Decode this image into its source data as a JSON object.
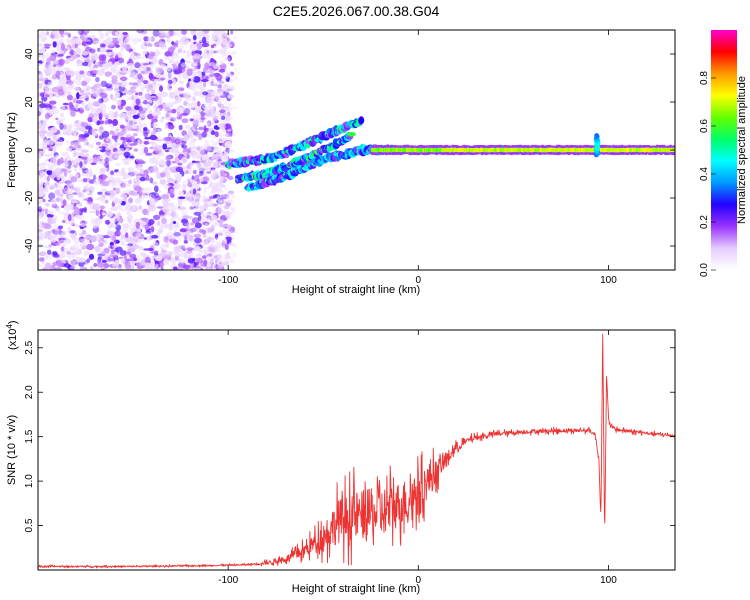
{
  "chart_data": [
    {
      "type": "heatmap",
      "title": "C2E5.2026.067.00.38.G04",
      "xlabel": "Height of straight line (km)",
      "ylabel": "Frequency (Hz)",
      "xlim": [
        -200,
        135
      ],
      "ylim": [
        -50,
        50
      ],
      "x_ticks": [
        -100,
        0,
        100
      ],
      "x_tick_labels": [
        "-100",
        "0",
        "100"
      ],
      "y_ticks": [
        -40,
        -20,
        0,
        20,
        40
      ],
      "y_tick_labels": [
        "-40",
        "-20",
        "0",
        "20",
        "40"
      ],
      "noise_region_x": [
        -200,
        -98
      ],
      "sparse_cloud_x": [
        -112,
        -96
      ],
      "carrier": {
        "x_start": -25,
        "x_end": 135,
        "frequency": 0,
        "amplitude": 0.7
      },
      "carrier_spike": {
        "x": 94,
        "frequency_range": [
          -2,
          6
        ],
        "amplitude": 0.5
      },
      "drift_branches": [
        {
          "name": "upper",
          "points": [
            [
              -100,
              -6
            ],
            [
              -75,
              -3
            ],
            [
              -55,
              4
            ],
            [
              -40,
              9
            ],
            [
              -30,
              12
            ]
          ],
          "amplitude": 0.4
        },
        {
          "name": "middle",
          "points": [
            [
              -95,
              -12
            ],
            [
              -80,
              -10
            ],
            [
              -60,
              -4
            ],
            [
              -45,
              2
            ],
            [
              -35,
              6
            ]
          ],
          "amplitude": 0.45
        },
        {
          "name": "lower",
          "points": [
            [
              -90,
              -16
            ],
            [
              -70,
              -11
            ],
            [
              -50,
              -4
            ],
            [
              -30,
              0
            ],
            [
              -10,
              0
            ]
          ],
          "amplitude": 0.35
        }
      ],
      "colorbar": {
        "label": "Normalized spectral amplitude",
        "range": [
          0,
          1
        ],
        "ticks": [
          0.0,
          0.2,
          0.4,
          0.6,
          0.8
        ],
        "tick_labels": [
          "0.0",
          "0.2",
          "0.4",
          "0.6",
          "0.8"
        ],
        "colors": [
          "#ffffff",
          "#e6ccff",
          "#9933ff",
          "#2200ff",
          "#0099ff",
          "#00ffff",
          "#00ff66",
          "#66ff00",
          "#ffff00",
          "#ff9900",
          "#ff0000",
          "#ff00cc"
        ]
      }
    },
    {
      "type": "line",
      "xlabel": "Height of straight line (km)",
      "ylabel": "SNR (10 * v/v)",
      "y_multiplier": "(x10",
      "y_multiplier_exp": "4",
      "y_multiplier_close": ")",
      "xlim": [
        -200,
        135
      ],
      "ylim": [
        0,
        2.7
      ],
      "x_ticks": [
        -100,
        0,
        100
      ],
      "x_tick_labels": [
        "-100",
        "0",
        "100"
      ],
      "y_ticks": [
        0.5,
        1.0,
        1.5,
        2.0,
        2.5
      ],
      "y_tick_labels": [
        "0.5",
        "1.0",
        "1.5",
        "2.0",
        "2.5"
      ],
      "color": "#ee3333",
      "series": [
        {
          "name": "SNR",
          "points": [
            [
              -200,
              0.04
            ],
            [
              -150,
              0.04
            ],
            [
              -110,
              0.05
            ],
            [
              -90,
              0.06
            ],
            [
              -80,
              0.08
            ],
            [
              -70,
              0.12
            ],
            [
              -60,
              0.22
            ],
            [
              -50,
              0.38
            ],
            [
              -42,
              0.55
            ],
            [
              -35,
              0.6
            ],
            [
              -28,
              0.62
            ],
            [
              -20,
              0.65
            ],
            [
              -12,
              0.72
            ],
            [
              -5,
              0.8
            ],
            [
              0,
              0.88
            ],
            [
              5,
              1.0
            ],
            [
              10,
              1.12
            ],
            [
              15,
              1.25
            ],
            [
              20,
              1.38
            ],
            [
              28,
              1.48
            ],
            [
              40,
              1.53
            ],
            [
              60,
              1.56
            ],
            [
              80,
              1.57
            ],
            [
              90,
              1.57
            ],
            [
              93,
              1.52
            ],
            [
              95,
              1.25
            ],
            [
              96,
              0.55
            ],
            [
              97,
              2.65
            ],
            [
              98,
              0.35
            ],
            [
              99,
              2.2
            ],
            [
              100,
              1.72
            ],
            [
              101,
              1.62
            ],
            [
              104,
              1.58
            ],
            [
              115,
              1.55
            ],
            [
              125,
              1.53
            ],
            [
              135,
              1.51
            ]
          ]
        }
      ],
      "noise_amplitude": [
        [
          -200,
          0.01
        ],
        [
          -90,
          0.01
        ],
        [
          -70,
          0.04
        ],
        [
          -55,
          0.12
        ],
        [
          -45,
          0.28
        ],
        [
          -35,
          0.35
        ],
        [
          -20,
          0.35
        ],
        [
          -5,
          0.3
        ],
        [
          5,
          0.25
        ],
        [
          12,
          0.12
        ],
        [
          25,
          0.04
        ],
        [
          40,
          0.03
        ],
        [
          135,
          0.02
        ]
      ]
    }
  ]
}
